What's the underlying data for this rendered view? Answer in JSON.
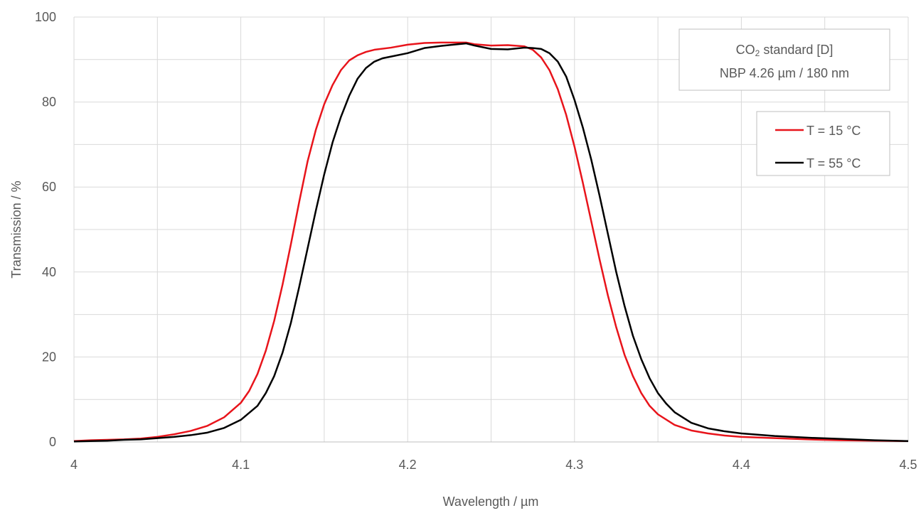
{
  "chart_data": {
    "type": "line",
    "xlabel": "Wavelength / µm",
    "ylabel": "Transmission / %",
    "xlim": [
      4,
      4.5
    ],
    "ylim": [
      0,
      100
    ],
    "x_ticks": [
      "4",
      "4.1",
      "4.2",
      "4.3",
      "4.4",
      "4.5"
    ],
    "y_ticks": [
      "0",
      "20",
      "40",
      "60",
      "80",
      "100"
    ],
    "grid": true,
    "legend_position": "right",
    "annotation": {
      "line1_prefix": "CO",
      "line1_sub": "2",
      "line1_suffix": " standard [D]",
      "line2": "NBP 4.26 µm / 180 nm"
    },
    "series": [
      {
        "name": "T = 15 °C",
        "color": "#e8141b",
        "x": [
          4.0,
          4.01,
          4.02,
          4.03,
          4.04,
          4.05,
          4.06,
          4.07,
          4.08,
          4.09,
          4.1,
          4.105,
          4.11,
          4.115,
          4.12,
          4.125,
          4.13,
          4.135,
          4.14,
          4.145,
          4.15,
          4.155,
          4.16,
          4.165,
          4.17,
          4.175,
          4.18,
          4.19,
          4.2,
          4.21,
          4.22,
          4.23,
          4.235,
          4.24,
          4.25,
          4.26,
          4.27,
          4.275,
          4.28,
          4.285,
          4.29,
          4.295,
          4.3,
          4.305,
          4.31,
          4.315,
          4.32,
          4.325,
          4.33,
          4.335,
          4.34,
          4.345,
          4.35,
          4.36,
          4.37,
          4.38,
          4.39,
          4.4,
          4.42,
          4.44,
          4.46,
          4.48,
          4.5
        ],
        "y": [
          0.2,
          0.4,
          0.5,
          0.6,
          0.8,
          1.2,
          1.8,
          2.6,
          3.8,
          5.8,
          9.2,
          12.0,
          16.0,
          21.5,
          28.5,
          37.0,
          46.5,
          56.5,
          66.0,
          73.5,
          79.5,
          84.0,
          87.5,
          89.8,
          91.0,
          91.8,
          92.3,
          92.8,
          93.5,
          93.9,
          94.0,
          94.0,
          94.0,
          93.6,
          93.3,
          93.4,
          93.1,
          92.3,
          90.5,
          87.5,
          83.0,
          77.0,
          69.5,
          61.0,
          52.0,
          43.0,
          34.5,
          27.0,
          20.5,
          15.5,
          11.5,
          8.5,
          6.5,
          4.0,
          2.7,
          2.0,
          1.5,
          1.2,
          0.9,
          0.6,
          0.4,
          0.3,
          0.2
        ]
      },
      {
        "name": "T = 55 °C",
        "color": "#000000",
        "x": [
          4.0,
          4.01,
          4.02,
          4.03,
          4.04,
          4.05,
          4.06,
          4.07,
          4.08,
          4.09,
          4.1,
          4.11,
          4.115,
          4.12,
          4.125,
          4.13,
          4.135,
          4.14,
          4.145,
          4.15,
          4.155,
          4.16,
          4.165,
          4.17,
          4.175,
          4.18,
          4.185,
          4.19,
          4.2,
          4.21,
          4.22,
          4.23,
          4.235,
          4.24,
          4.25,
          4.26,
          4.27,
          4.275,
          4.28,
          4.285,
          4.29,
          4.295,
          4.3,
          4.305,
          4.31,
          4.315,
          4.32,
          4.325,
          4.33,
          4.335,
          4.34,
          4.345,
          4.35,
          4.355,
          4.36,
          4.37,
          4.38,
          4.39,
          4.4,
          4.42,
          4.44,
          4.46,
          4.48,
          4.5
        ],
        "y": [
          0.1,
          0.2,
          0.3,
          0.5,
          0.6,
          0.9,
          1.2,
          1.6,
          2.2,
          3.3,
          5.2,
          8.5,
          11.5,
          15.5,
          21.0,
          28.0,
          36.5,
          45.5,
          54.5,
          63.0,
          70.5,
          76.5,
          81.5,
          85.5,
          88.0,
          89.5,
          90.3,
          90.7,
          91.5,
          92.7,
          93.2,
          93.6,
          93.8,
          93.3,
          92.5,
          92.4,
          92.8,
          92.7,
          92.5,
          91.5,
          89.5,
          86.0,
          80.5,
          74.0,
          66.5,
          58.0,
          49.0,
          40.0,
          32.0,
          25.0,
          19.5,
          15.0,
          11.5,
          9.0,
          7.0,
          4.5,
          3.2,
          2.5,
          2.0,
          1.4,
          1.0,
          0.7,
          0.4,
          0.2
        ]
      }
    ]
  }
}
